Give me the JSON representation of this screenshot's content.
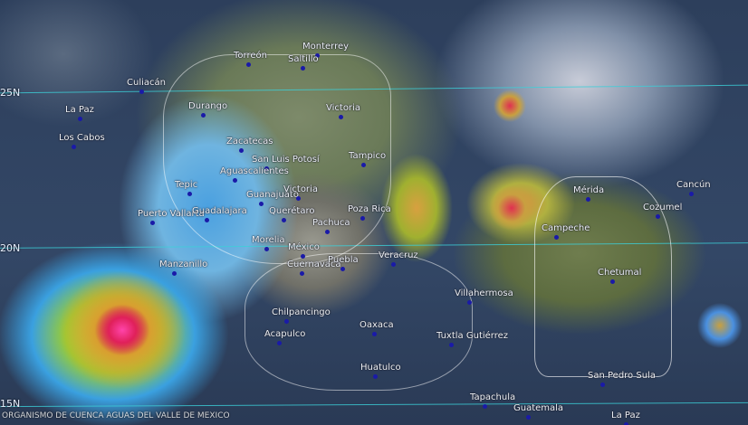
{
  "map": {
    "latitudes": [
      {
        "label": "25N"
      },
      {
        "label": "20N"
      },
      {
        "label": "15N"
      }
    ],
    "cities": [
      {
        "name": "Torreón"
      },
      {
        "name": "Monterrey"
      },
      {
        "name": "Saltillo"
      },
      {
        "name": "Culiacán"
      },
      {
        "name": "La Paz"
      },
      {
        "name": "Los Cabos"
      },
      {
        "name": "Durango"
      },
      {
        "name": "Victoria"
      },
      {
        "name": "Zacatecas"
      },
      {
        "name": "Tampico"
      },
      {
        "name": "San Luis Potosí"
      },
      {
        "name": "Aguascalientes"
      },
      {
        "name": "Tepic"
      },
      {
        "name": "Guanajuato"
      },
      {
        "name": "Victoria"
      },
      {
        "name": "Querétaro"
      },
      {
        "name": "Puerto Vallarta"
      },
      {
        "name": "Guadalajara"
      },
      {
        "name": "Poza Rica"
      },
      {
        "name": "Pachuca"
      },
      {
        "name": "Morelia"
      },
      {
        "name": "México"
      },
      {
        "name": "Cuernavaca"
      },
      {
        "name": "Puebla"
      },
      {
        "name": "Veracruz"
      },
      {
        "name": "Manzanillo"
      },
      {
        "name": "Villahermosa"
      },
      {
        "name": "Oaxaca"
      },
      {
        "name": "Chilpancingo"
      },
      {
        "name": "Acapulco"
      },
      {
        "name": "Tuxtla Gutiérrez"
      },
      {
        "name": "Huatulco"
      },
      {
        "name": "Tapachula"
      },
      {
        "name": "Guatemala"
      },
      {
        "name": "La Paz"
      },
      {
        "name": "San Pedro Sula"
      },
      {
        "name": "Chetumal"
      },
      {
        "name": "Campeche"
      },
      {
        "name": "Mérida"
      },
      {
        "name": "Cancún"
      },
      {
        "name": "Cozumel"
      }
    ],
    "credit": "ORGANISMO DE CUENCA AGUAS DEL VALLE DE MEXICO"
  }
}
